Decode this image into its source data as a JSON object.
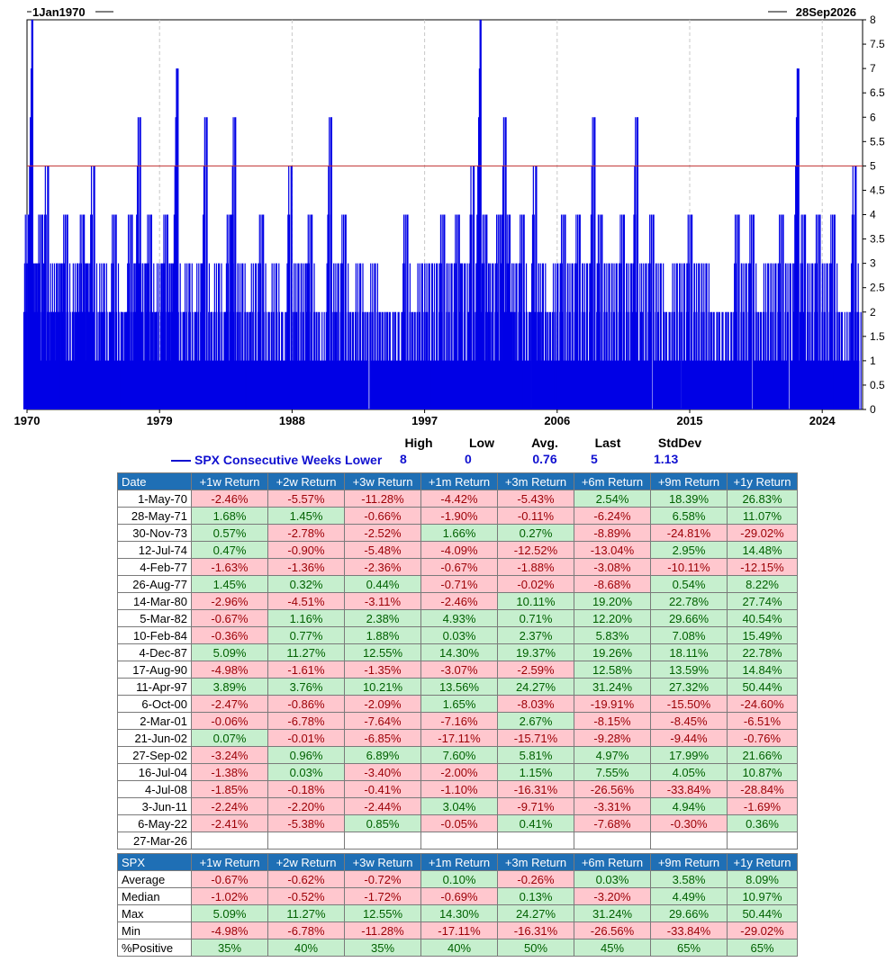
{
  "chart_data": {
    "type": "bar",
    "start_label": "1Jan1970",
    "end_label": "28Sep2026",
    "x_ticks": [
      "1970",
      "1979",
      "1988",
      "1997",
      "2006",
      "2015",
      "2024"
    ],
    "x_range": [
      1970,
      2026.74
    ],
    "y_ticks": [
      "0",
      "0.5",
      "1",
      "1.5",
      "2",
      "2.5",
      "3",
      "3.5",
      "4",
      "4.5",
      "5",
      "5.5",
      "6",
      "6.5",
      "7",
      "7.5",
      "8"
    ],
    "ylim": [
      0,
      8
    ],
    "threshold": 5,
    "bar_color": "#0000e6",
    "threshold_color": "#c03030",
    "peaks": [
      {
        "x": 1970.1,
        "y": 4
      },
      {
        "x": 1970.33,
        "y": 8
      },
      {
        "x": 1970.6,
        "y": 3
      },
      {
        "x": 1971.0,
        "y": 4
      },
      {
        "x": 1971.4,
        "y": 5
      },
      {
        "x": 1971.7,
        "y": 2
      },
      {
        "x": 1972.0,
        "y": 3
      },
      {
        "x": 1972.3,
        "y": 3
      },
      {
        "x": 1972.7,
        "y": 4
      },
      {
        "x": 1973.1,
        "y": 2
      },
      {
        "x": 1973.4,
        "y": 3
      },
      {
        "x": 1973.83,
        "y": 4
      },
      {
        "x": 1974.1,
        "y": 3
      },
      {
        "x": 1974.53,
        "y": 5
      },
      {
        "x": 1974.9,
        "y": 2
      },
      {
        "x": 1975.2,
        "y": 3
      },
      {
        "x": 1975.6,
        "y": 2
      },
      {
        "x": 1976.0,
        "y": 4
      },
      {
        "x": 1976.4,
        "y": 2
      },
      {
        "x": 1976.7,
        "y": 2
      },
      {
        "x": 1977.09,
        "y": 4
      },
      {
        "x": 1977.4,
        "y": 3
      },
      {
        "x": 1977.65,
        "y": 6
      },
      {
        "x": 1978.0,
        "y": 3
      },
      {
        "x": 1978.4,
        "y": 4
      },
      {
        "x": 1978.7,
        "y": 2
      },
      {
        "x": 1979.1,
        "y": 3
      },
      {
        "x": 1979.5,
        "y": 4
      },
      {
        "x": 1979.8,
        "y": 3
      },
      {
        "x": 1980.2,
        "y": 7
      },
      {
        "x": 1980.6,
        "y": 2
      },
      {
        "x": 1981.0,
        "y": 3
      },
      {
        "x": 1981.4,
        "y": 2
      },
      {
        "x": 1981.8,
        "y": 3
      },
      {
        "x": 1982.17,
        "y": 6
      },
      {
        "x": 1982.5,
        "y": 2
      },
      {
        "x": 1983.0,
        "y": 3
      },
      {
        "x": 1983.4,
        "y": 2
      },
      {
        "x": 1983.8,
        "y": 4
      },
      {
        "x": 1984.11,
        "y": 6
      },
      {
        "x": 1984.6,
        "y": 3
      },
      {
        "x": 1985.1,
        "y": 2
      },
      {
        "x": 1985.5,
        "y": 3
      },
      {
        "x": 1986.0,
        "y": 4
      },
      {
        "x": 1986.4,
        "y": 2
      },
      {
        "x": 1986.9,
        "y": 3
      },
      {
        "x": 1987.3,
        "y": 2
      },
      {
        "x": 1987.93,
        "y": 5
      },
      {
        "x": 1988.4,
        "y": 3
      },
      {
        "x": 1988.9,
        "y": 3
      },
      {
        "x": 1989.3,
        "y": 4
      },
      {
        "x": 1989.8,
        "y": 2
      },
      {
        "x": 1990.63,
        "y": 6
      },
      {
        "x": 1991.1,
        "y": 3
      },
      {
        "x": 1991.6,
        "y": 4
      },
      {
        "x": 1992.1,
        "y": 2
      },
      {
        "x": 1992.6,
        "y": 3
      },
      {
        "x": 1993.1,
        "y": 2
      },
      {
        "x": 1993.6,
        "y": 3
      },
      {
        "x": 1994.1,
        "y": 2
      },
      {
        "x": 1994.6,
        "y": 2
      },
      {
        "x": 1995.2,
        "y": 2
      },
      {
        "x": 1995.8,
        "y": 4
      },
      {
        "x": 1996.3,
        "y": 2
      },
      {
        "x": 1996.8,
        "y": 3
      },
      {
        "x": 1997.28,
        "y": 3
      },
      {
        "x": 1997.8,
        "y": 3
      },
      {
        "x": 1998.3,
        "y": 4
      },
      {
        "x": 1998.8,
        "y": 3
      },
      {
        "x": 1999.3,
        "y": 4
      },
      {
        "x": 1999.7,
        "y": 3
      },
      {
        "x": 2000.3,
        "y": 5
      },
      {
        "x": 2000.77,
        "y": 8
      },
      {
        "x": 2001.17,
        "y": 4
      },
      {
        "x": 2001.6,
        "y": 3
      },
      {
        "x": 2002.1,
        "y": 4
      },
      {
        "x": 2002.47,
        "y": 6
      },
      {
        "x": 2002.74,
        "y": 4
      },
      {
        "x": 2003.2,
        "y": 3
      },
      {
        "x": 2003.7,
        "y": 4
      },
      {
        "x": 2004.1,
        "y": 2
      },
      {
        "x": 2004.54,
        "y": 5
      },
      {
        "x": 2005.0,
        "y": 3
      },
      {
        "x": 2005.5,
        "y": 2
      },
      {
        "x": 2006.0,
        "y": 3
      },
      {
        "x": 2006.5,
        "y": 4
      },
      {
        "x": 2007.0,
        "y": 3
      },
      {
        "x": 2007.5,
        "y": 4
      },
      {
        "x": 2008.0,
        "y": 3
      },
      {
        "x": 2008.51,
        "y": 6
      },
      {
        "x": 2009.0,
        "y": 4
      },
      {
        "x": 2009.5,
        "y": 3
      },
      {
        "x": 2010.0,
        "y": 3
      },
      {
        "x": 2010.5,
        "y": 4
      },
      {
        "x": 2011.0,
        "y": 3
      },
      {
        "x": 2011.42,
        "y": 6
      },
      {
        "x": 2012.0,
        "y": 3
      },
      {
        "x": 2012.5,
        "y": 4
      },
      {
        "x": 2013.0,
        "y": 3
      },
      {
        "x": 2013.6,
        "y": 2
      },
      {
        "x": 2014.1,
        "y": 3
      },
      {
        "x": 2014.6,
        "y": 3
      },
      {
        "x": 2015.1,
        "y": 4
      },
      {
        "x": 2015.6,
        "y": 3
      },
      {
        "x": 2016.1,
        "y": 3
      },
      {
        "x": 2016.6,
        "y": 2
      },
      {
        "x": 2017.2,
        "y": 2
      },
      {
        "x": 2017.8,
        "y": 2
      },
      {
        "x": 2018.3,
        "y": 4
      },
      {
        "x": 2018.8,
        "y": 3
      },
      {
        "x": 2019.3,
        "y": 4
      },
      {
        "x": 2019.8,
        "y": 2
      },
      {
        "x": 2020.3,
        "y": 3
      },
      {
        "x": 2020.8,
        "y": 3
      },
      {
        "x": 2021.3,
        "y": 4
      },
      {
        "x": 2021.8,
        "y": 3
      },
      {
        "x": 2022.35,
        "y": 7
      },
      {
        "x": 2022.8,
        "y": 4
      },
      {
        "x": 2023.3,
        "y": 3
      },
      {
        "x": 2023.8,
        "y": 4
      },
      {
        "x": 2024.3,
        "y": 3
      },
      {
        "x": 2024.8,
        "y": 4
      },
      {
        "x": 2025.3,
        "y": 2
      },
      {
        "x": 2026.0,
        "y": 2
      },
      {
        "x": 2026.24,
        "y": 5
      }
    ],
    "legend": {
      "series_name": "SPX Consecutive Weeks Lower",
      "headers": [
        "High",
        "Low",
        "Avg.",
        "Last",
        "StdDev"
      ],
      "values": [
        "8",
        "0",
        "0.76",
        "5",
        "1.13"
      ]
    }
  },
  "returns_table": {
    "headers": [
      "Date",
      "+1w Return",
      "+2w Return",
      "+3w Return",
      "+1m Return",
      "+3m Return",
      "+6m Return",
      "+9m Return",
      "+1y Return"
    ],
    "rows": [
      {
        "date": "1-May-70",
        "values": [
          "-2.46%",
          "-5.57%",
          "-11.28%",
          "-4.42%",
          "-5.43%",
          "2.54%",
          "18.39%",
          "26.83%"
        ]
      },
      {
        "date": "28-May-71",
        "values": [
          "1.68%",
          "1.45%",
          "-0.66%",
          "-1.90%",
          "-0.11%",
          "-6.24%",
          "6.58%",
          "11.07%"
        ]
      },
      {
        "date": "30-Nov-73",
        "values": [
          "0.57%",
          "-2.78%",
          "-2.52%",
          "1.66%",
          "0.27%",
          "-8.89%",
          "-24.81%",
          "-29.02%"
        ]
      },
      {
        "date": "12-Jul-74",
        "values": [
          "0.47%",
          "-0.90%",
          "-5.48%",
          "-4.09%",
          "-12.52%",
          "-13.04%",
          "2.95%",
          "14.48%"
        ]
      },
      {
        "date": "4-Feb-77",
        "values": [
          "-1.63%",
          "-1.36%",
          "-2.36%",
          "-0.67%",
          "-1.88%",
          "-3.08%",
          "-10.11%",
          "-12.15%"
        ]
      },
      {
        "date": "26-Aug-77",
        "values": [
          "1.45%",
          "0.32%",
          "0.44%",
          "-0.71%",
          "-0.02%",
          "-8.68%",
          "0.54%",
          "8.22%"
        ]
      },
      {
        "date": "14-Mar-80",
        "values": [
          "-2.96%",
          "-4.51%",
          "-3.11%",
          "-2.46%",
          "10.11%",
          "19.20%",
          "22.78%",
          "27.74%"
        ]
      },
      {
        "date": "5-Mar-82",
        "values": [
          "-0.67%",
          "1.16%",
          "2.38%",
          "4.93%",
          "0.71%",
          "12.20%",
          "29.66%",
          "40.54%"
        ]
      },
      {
        "date": "10-Feb-84",
        "values": [
          "-0.36%",
          "0.77%",
          "1.88%",
          "0.03%",
          "2.37%",
          "5.83%",
          "7.08%",
          "15.49%"
        ]
      },
      {
        "date": "4-Dec-87",
        "values": [
          "5.09%",
          "11.27%",
          "12.55%",
          "14.30%",
          "19.37%",
          "19.26%",
          "18.11%",
          "22.78%"
        ]
      },
      {
        "date": "17-Aug-90",
        "values": [
          "-4.98%",
          "-1.61%",
          "-1.35%",
          "-3.07%",
          "-2.59%",
          "12.58%",
          "13.59%",
          "14.84%"
        ]
      },
      {
        "date": "11-Apr-97",
        "values": [
          "3.89%",
          "3.76%",
          "10.21%",
          "13.56%",
          "24.27%",
          "31.24%",
          "27.32%",
          "50.44%"
        ]
      },
      {
        "date": "6-Oct-00",
        "values": [
          "-2.47%",
          "-0.86%",
          "-2.09%",
          "1.65%",
          "-8.03%",
          "-19.91%",
          "-15.50%",
          "-24.60%"
        ]
      },
      {
        "date": "2-Mar-01",
        "values": [
          "-0.06%",
          "-6.78%",
          "-7.64%",
          "-7.16%",
          "2.67%",
          "-8.15%",
          "-8.45%",
          "-6.51%"
        ]
      },
      {
        "date": "21-Jun-02",
        "values": [
          "0.07%",
          "-0.01%",
          "-6.85%",
          "-17.11%",
          "-15.71%",
          "-9.28%",
          "-9.44%",
          "-0.76%"
        ]
      },
      {
        "date": "27-Sep-02",
        "values": [
          "-3.24%",
          "0.96%",
          "6.89%",
          "7.60%",
          "5.81%",
          "4.97%",
          "17.99%",
          "21.66%"
        ]
      },
      {
        "date": "16-Jul-04",
        "values": [
          "-1.38%",
          "0.03%",
          "-3.40%",
          "-2.00%",
          "1.15%",
          "7.55%",
          "4.05%",
          "10.87%"
        ]
      },
      {
        "date": "4-Jul-08",
        "values": [
          "-1.85%",
          "-0.18%",
          "-0.41%",
          "-1.10%",
          "-16.31%",
          "-26.56%",
          "-33.84%",
          "-28.84%"
        ]
      },
      {
        "date": "3-Jun-11",
        "values": [
          "-2.24%",
          "-2.20%",
          "-2.44%",
          "3.04%",
          "-9.71%",
          "-3.31%",
          "4.94%",
          "-1.69%"
        ]
      },
      {
        "date": "6-May-22",
        "values": [
          "-2.41%",
          "-5.38%",
          "0.85%",
          "-0.05%",
          "0.41%",
          "-7.68%",
          "-0.30%",
          "0.36%"
        ]
      },
      {
        "date": "27-Mar-26",
        "values": [
          "",
          "",
          "",
          "",
          "",
          "",
          "",
          ""
        ]
      }
    ]
  },
  "summary_table": {
    "headers": [
      "SPX",
      "+1w Return",
      "+2w Return",
      "+3w Return",
      "+1m Return",
      "+3m Return",
      "+6m Return",
      "+9m Return",
      "+1y Return"
    ],
    "rows": [
      {
        "label": "Average",
        "values": [
          "-0.67%",
          "-0.62%",
          "-0.72%",
          "0.10%",
          "-0.26%",
          "0.03%",
          "3.58%",
          "8.09%"
        ]
      },
      {
        "label": "Median",
        "values": [
          "-1.02%",
          "-0.52%",
          "-1.72%",
          "-0.69%",
          "0.13%",
          "-3.20%",
          "4.49%",
          "10.97%"
        ]
      },
      {
        "label": "Max",
        "values": [
          "5.09%",
          "11.27%",
          "12.55%",
          "14.30%",
          "24.27%",
          "31.24%",
          "29.66%",
          "50.44%"
        ]
      },
      {
        "label": "Min",
        "values": [
          "-4.98%",
          "-6.78%",
          "-11.28%",
          "-17.11%",
          "-16.31%",
          "-26.56%",
          "-33.84%",
          "-29.02%"
        ]
      },
      {
        "label": "%Positive",
        "values": [
          "35%",
          "40%",
          "35%",
          "40%",
          "50%",
          "45%",
          "65%",
          "65%"
        ]
      }
    ]
  }
}
